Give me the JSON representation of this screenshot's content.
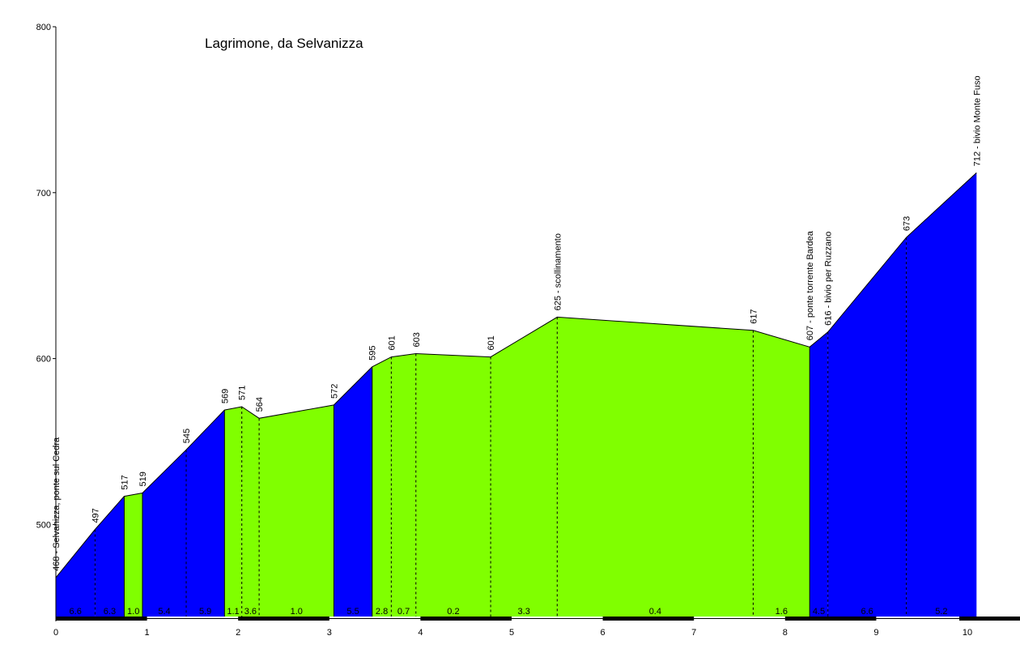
{
  "chart_data": {
    "type": "area",
    "title": "Lagrimone, da Selvanizza",
    "xlabel": "",
    "ylabel": "",
    "xlim": [
      0,
      10.5
    ],
    "ylim": [
      440,
      800
    ],
    "yticks": [
      500,
      600,
      700,
      800
    ],
    "xticks": [
      0,
      1,
      2,
      3,
      4,
      5,
      6,
      7,
      8,
      9,
      10
    ],
    "grid": false,
    "colors": {
      "climb": "#0000FF",
      "moderate": "#80FF00",
      "line": "#000000"
    },
    "profile": [
      {
        "x": 0.0,
        "y": 468
      },
      {
        "x": 0.43,
        "y": 497
      },
      {
        "x": 0.75,
        "y": 517
      },
      {
        "x": 0.95,
        "y": 519
      },
      {
        "x": 1.43,
        "y": 545
      },
      {
        "x": 1.85,
        "y": 569
      },
      {
        "x": 2.04,
        "y": 571
      },
      {
        "x": 2.23,
        "y": 564
      },
      {
        "x": 3.05,
        "y": 572
      },
      {
        "x": 3.47,
        "y": 595
      },
      {
        "x": 3.68,
        "y": 601
      },
      {
        "x": 3.95,
        "y": 603
      },
      {
        "x": 4.77,
        "y": 601
      },
      {
        "x": 5.5,
        "y": 625
      },
      {
        "x": 7.65,
        "y": 617
      },
      {
        "x": 8.27,
        "y": 607
      },
      {
        "x": 8.47,
        "y": 616
      },
      {
        "x": 9.33,
        "y": 673
      },
      {
        "x": 10.1,
        "y": 712
      }
    ],
    "labels": [
      {
        "x": 0.0,
        "y": 468,
        "text": "468 - Selvanizza, ponte sul Cedra"
      },
      {
        "x": 0.43,
        "y": 497,
        "text": "497"
      },
      {
        "x": 0.75,
        "y": 517,
        "text": "517"
      },
      {
        "x": 0.95,
        "y": 519,
        "text": "519"
      },
      {
        "x": 1.43,
        "y": 545,
        "text": "545"
      },
      {
        "x": 1.85,
        "y": 569,
        "text": "569"
      },
      {
        "x": 2.04,
        "y": 571,
        "text": "571"
      },
      {
        "x": 2.23,
        "y": 564,
        "text": "564"
      },
      {
        "x": 3.05,
        "y": 572,
        "text": "572"
      },
      {
        "x": 3.47,
        "y": 595,
        "text": "595"
      },
      {
        "x": 3.68,
        "y": 601,
        "text": "601"
      },
      {
        "x": 3.95,
        "y": 603,
        "text": "603"
      },
      {
        "x": 4.77,
        "y": 601,
        "text": "601"
      },
      {
        "x": 5.5,
        "y": 625,
        "text": "625 - scollinamento"
      },
      {
        "x": 7.65,
        "y": 617,
        "text": "617"
      },
      {
        "x": 8.27,
        "y": 607,
        "text": "607 - ponte torrente Bardea"
      },
      {
        "x": 8.47,
        "y": 616,
        "text": "616 - bivio per Ruzzano"
      },
      {
        "x": 9.33,
        "y": 673,
        "text": "673"
      },
      {
        "x": 10.1,
        "y": 712,
        "text": "712 - bivio Monte Fuso"
      }
    ],
    "segments": [
      {
        "from": 0.0,
        "to": 0.43,
        "gradient": "6.6",
        "fill": "blue"
      },
      {
        "from": 0.43,
        "to": 0.75,
        "gradient": "6.3",
        "fill": "blue"
      },
      {
        "from": 0.75,
        "to": 0.95,
        "gradient": "1.0",
        "fill": "green"
      },
      {
        "from": 0.95,
        "to": 1.43,
        "gradient": "5.4",
        "fill": "blue"
      },
      {
        "from": 1.43,
        "to": 1.85,
        "gradient": "5.9",
        "fill": "blue"
      },
      {
        "from": 1.85,
        "to": 2.04,
        "gradient": "1.1",
        "fill": "green"
      },
      {
        "from": 2.04,
        "to": 2.23,
        "gradient": "3.6",
        "fill": "green"
      },
      {
        "from": 2.23,
        "to": 3.05,
        "gradient": "1.0",
        "fill": "green"
      },
      {
        "from": 3.05,
        "to": 3.47,
        "gradient": "5.5",
        "fill": "blue"
      },
      {
        "from": 3.47,
        "to": 3.68,
        "gradient": "2.8",
        "fill": "green"
      },
      {
        "from": 3.68,
        "to": 3.95,
        "gradient": "0.7",
        "fill": "green"
      },
      {
        "from": 3.95,
        "to": 4.77,
        "gradient": "0.2",
        "fill": "green"
      },
      {
        "from": 4.77,
        "to": 5.5,
        "gradient": "3.3",
        "fill": "green"
      },
      {
        "from": 5.5,
        "to": 7.65,
        "gradient": "0.4",
        "fill": "green"
      },
      {
        "from": 7.65,
        "to": 8.27,
        "gradient": "1.6",
        "fill": "green"
      },
      {
        "from": 8.27,
        "to": 8.47,
        "gradient": "4.5",
        "fill": "blue"
      },
      {
        "from": 8.47,
        "to": 9.33,
        "gradient": "6.6",
        "fill": "blue"
      },
      {
        "from": 9.33,
        "to": 10.1,
        "gradient": "5.2",
        "fill": "blue"
      }
    ]
  }
}
